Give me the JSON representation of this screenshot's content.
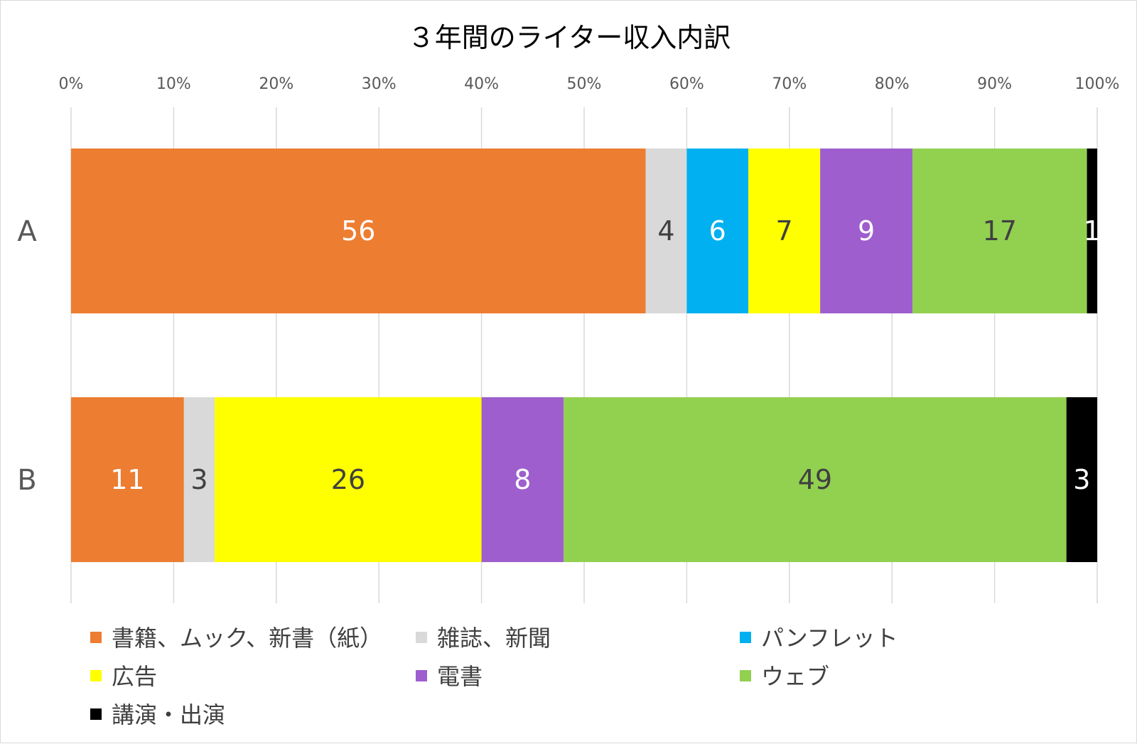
{
  "chart_data": {
    "type": "bar",
    "orientation": "horizontal",
    "stacked": "percent",
    "title": "３年間のライター収入内訳",
    "categories": [
      "A",
      "B"
    ],
    "x_ticks": [
      "0%",
      "10%",
      "20%",
      "30%",
      "40%",
      "50%",
      "60%",
      "70%",
      "80%",
      "90%",
      "100%"
    ],
    "xlim": [
      0,
      100
    ],
    "grid": true,
    "legend_position": "bottom",
    "series": [
      {
        "name": "書籍、ムック、新書（紙）",
        "color": "#ED7D31",
        "label_color": "#ffffff",
        "values": [
          56,
          11
        ]
      },
      {
        "name": "雑誌、新聞",
        "color": "#D9D9D9",
        "label_color": "#404040",
        "values": [
          4,
          3
        ]
      },
      {
        "name": "パンフレット",
        "color": "#00B0F0",
        "label_color": "#ffffff",
        "values": [
          6,
          0
        ]
      },
      {
        "name": "広告",
        "color": "#FFFF00",
        "label_color": "#404040",
        "values": [
          7,
          26
        ]
      },
      {
        "name": "電書",
        "color": "#9E5ECE",
        "label_color": "#ffffff",
        "values": [
          9,
          8
        ]
      },
      {
        "name": "ウェブ",
        "color": "#92D050",
        "label_color": "#404040",
        "values": [
          17,
          49
        ]
      },
      {
        "name": "講演・出演",
        "color": "#000000",
        "label_color": "#ffffff",
        "values": [
          1,
          3
        ]
      }
    ]
  }
}
